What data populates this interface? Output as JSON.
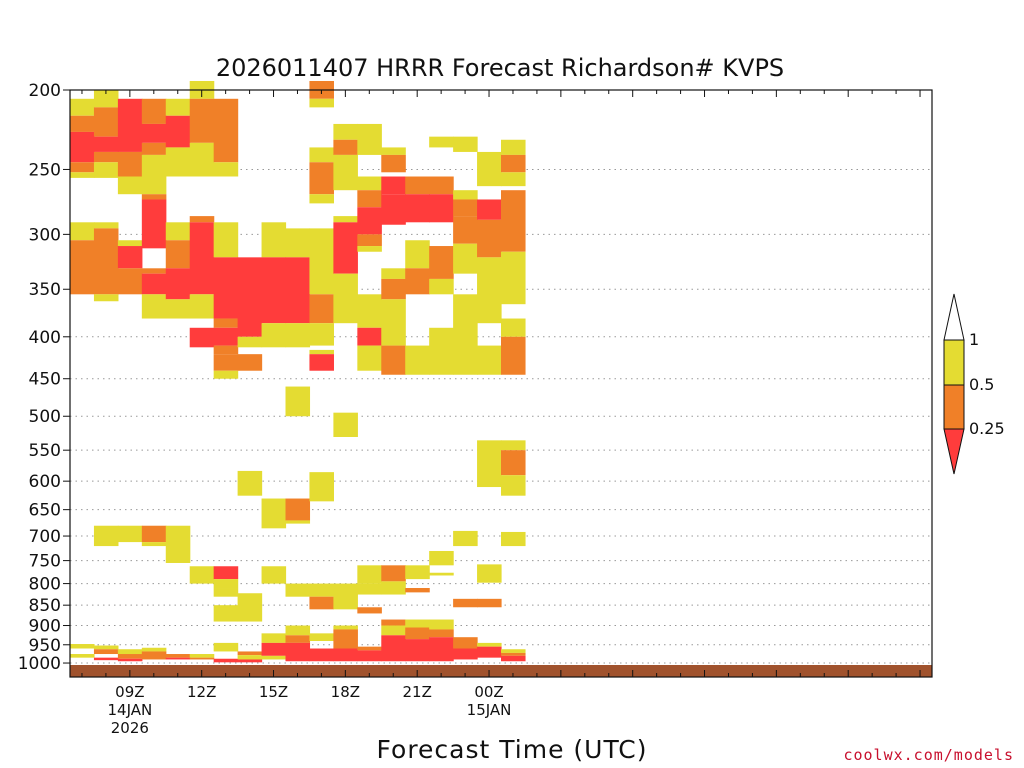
{
  "chart_data": {
    "type": "heatmap",
    "title": "2026011407 HRRR Forecast Richardson# KVPS",
    "xlabel": "Forecast Time (UTC)",
    "ylabel": "",
    "y_scale": "log",
    "y_range": [
      1040,
      200
    ],
    "y_ticks": [
      200,
      250,
      300,
      350,
      400,
      450,
      500,
      550,
      600,
      650,
      700,
      750,
      800,
      850,
      900,
      950,
      1000
    ],
    "x_range_hours": [
      6.5,
      42.5
    ],
    "x_ticks": [
      {
        "hour": 9,
        "lines": [
          "09Z",
          "14JAN",
          "2026"
        ]
      },
      {
        "hour": 12,
        "lines": [
          "12Z"
        ]
      },
      {
        "hour": 15,
        "lines": [
          "15Z"
        ]
      },
      {
        "hour": 18,
        "lines": [
          "18Z"
        ]
      },
      {
        "hour": 21,
        "lines": [
          "21Z"
        ]
      },
      {
        "hour": 24,
        "lines": [
          "00Z",
          "15JAN"
        ]
      }
    ],
    "grid": "dotted-horizontal",
    "categories": [
      {
        "label": "< 0.25",
        "color": "#ff3c3c"
      },
      {
        "label": "0.25-0.5",
        "color": "#f08028"
      },
      {
        "label": "0.5-1",
        "color": "#e4dc32"
      }
    ],
    "legend": {
      "placement": "right",
      "labels": [
        "1",
        "0.5",
        "0.25"
      ],
      "colors": {
        "red": "#ff3c3c",
        "orange": "#f08028",
        "yellow": "#e4dc32"
      }
    },
    "ground": {
      "color": "#a0522d",
      "top_hpa": 1004
    },
    "cells": [
      [
        "h",
        7,
        205,
        215,
        "y"
      ],
      [
        "h",
        7,
        215,
        225,
        "o"
      ],
      [
        "h",
        7,
        225,
        245,
        "r"
      ],
      [
        "h",
        7,
        245,
        252,
        "o"
      ],
      [
        "h",
        7,
        252,
        256,
        "y"
      ],
      [
        "h",
        7,
        290,
        305,
        "y"
      ],
      [
        "h",
        7,
        305,
        355,
        "o"
      ],
      [
        "h",
        7,
        948,
        960,
        "y"
      ],
      [
        "h",
        7,
        975,
        985,
        "y"
      ],
      [
        "h",
        8,
        200,
        210,
        "y"
      ],
      [
        "h",
        8,
        210,
        228,
        "o"
      ],
      [
        "h",
        8,
        228,
        238,
        "r"
      ],
      [
        "h",
        8,
        238,
        245,
        "o"
      ],
      [
        "h",
        8,
        245,
        256,
        "y"
      ],
      [
        "h",
        8,
        290,
        295,
        "y"
      ],
      [
        "h",
        8,
        295,
        355,
        "o"
      ],
      [
        "h",
        8,
        355,
        362,
        "y"
      ],
      [
        "h",
        8,
        680,
        720,
        "y"
      ],
      [
        "h",
        8,
        952,
        962,
        "y"
      ],
      [
        "h",
        8,
        962,
        975,
        "o"
      ],
      [
        "h",
        8,
        985,
        992,
        "r"
      ],
      [
        "h",
        9,
        205,
        238,
        "r"
      ],
      [
        "h",
        9,
        238,
        255,
        "o"
      ],
      [
        "h",
        9,
        255,
        268,
        "y"
      ],
      [
        "h",
        9,
        305,
        310,
        "y"
      ],
      [
        "h",
        9,
        310,
        330,
        "r"
      ],
      [
        "h",
        9,
        330,
        355,
        "o"
      ],
      [
        "h",
        9,
        680,
        712,
        "y"
      ],
      [
        "h",
        9,
        962,
        975,
        "y"
      ],
      [
        "h",
        9,
        975,
        988,
        "o"
      ],
      [
        "h",
        9,
        988,
        995,
        "r"
      ],
      [
        "h",
        10,
        205,
        220,
        "o"
      ],
      [
        "h",
        10,
        220,
        232,
        "r"
      ],
      [
        "h",
        10,
        232,
        240,
        "o"
      ],
      [
        "h",
        10,
        240,
        268,
        "y"
      ],
      [
        "h",
        10,
        268,
        272,
        "o"
      ],
      [
        "h",
        10,
        272,
        312,
        "r"
      ],
      [
        "h",
        10,
        330,
        335,
        "o"
      ],
      [
        "h",
        10,
        335,
        355,
        "r"
      ],
      [
        "h",
        10,
        355,
        380,
        "y"
      ],
      [
        "h",
        10,
        680,
        712,
        "o"
      ],
      [
        "h",
        10,
        712,
        720,
        "y"
      ],
      [
        "h",
        10,
        958,
        968,
        "y"
      ],
      [
        "h",
        10,
        968,
        990,
        "o"
      ],
      [
        "h",
        11,
        205,
        215,
        "y"
      ],
      [
        "h",
        11,
        215,
        235,
        "r"
      ],
      [
        "h",
        11,
        235,
        255,
        "y"
      ],
      [
        "h",
        11,
        290,
        305,
        "y"
      ],
      [
        "h",
        11,
        305,
        330,
        "o"
      ],
      [
        "h",
        11,
        330,
        360,
        "r"
      ],
      [
        "h",
        11,
        360,
        380,
        "y"
      ],
      [
        "h",
        11,
        680,
        755,
        "y"
      ],
      [
        "h",
        11,
        975,
        985,
        "o"
      ],
      [
        "h",
        11,
        985,
        990,
        "r"
      ],
      [
        "h",
        12,
        195,
        205,
        "y"
      ],
      [
        "h",
        12,
        205,
        232,
        "o"
      ],
      [
        "h",
        12,
        232,
        255,
        "y"
      ],
      [
        "h",
        12,
        285,
        290,
        "o"
      ],
      [
        "h",
        12,
        290,
        355,
        "r"
      ],
      [
        "h",
        12,
        355,
        380,
        "y"
      ],
      [
        "h",
        12,
        390,
        412,
        "r"
      ],
      [
        "h",
        12,
        762,
        800,
        "y"
      ],
      [
        "h",
        12,
        975,
        985,
        "y"
      ],
      [
        "h",
        12,
        985,
        990,
        "o"
      ],
      [
        "h",
        13,
        205,
        245,
        "o"
      ],
      [
        "h",
        13,
        245,
        255,
        "y"
      ],
      [
        "h",
        13,
        290,
        320,
        "y"
      ],
      [
        "h",
        13,
        320,
        380,
        "r"
      ],
      [
        "h",
        13,
        380,
        390,
        "o"
      ],
      [
        "h",
        13,
        390,
        410,
        "r"
      ],
      [
        "h",
        13,
        410,
        420,
        "o"
      ],
      [
        "h",
        13,
        420,
        440,
        "o"
      ],
      [
        "h",
        13,
        440,
        450,
        "y"
      ],
      [
        "h",
        13,
        762,
        790,
        "r"
      ],
      [
        "h",
        13,
        790,
        810,
        "y"
      ],
      [
        "h",
        13,
        810,
        830,
        "y"
      ],
      [
        "h",
        13,
        850,
        890,
        "y"
      ],
      [
        "h",
        13,
        945,
        968,
        "y"
      ],
      [
        "h",
        13,
        988,
        998,
        "r"
      ],
      [
        "h",
        14,
        320,
        400,
        "r"
      ],
      [
        "h",
        14,
        400,
        412,
        "y"
      ],
      [
        "h",
        14,
        420,
        440,
        "o"
      ],
      [
        "h",
        14,
        583,
        625,
        "y"
      ],
      [
        "h",
        14,
        822,
        890,
        "y"
      ],
      [
        "h",
        14,
        968,
        978,
        "o"
      ],
      [
        "h",
        14,
        978,
        990,
        "y"
      ],
      [
        "h",
        14,
        990,
        998,
        "r"
      ],
      [
        "h",
        15,
        290,
        320,
        "y"
      ],
      [
        "h",
        15,
        320,
        385,
        "r"
      ],
      [
        "h",
        15,
        385,
        412,
        "y"
      ],
      [
        "h",
        15,
        630,
        685,
        "y"
      ],
      [
        "h",
        15,
        762,
        800,
        "y"
      ],
      [
        "h",
        15,
        920,
        945,
        "y"
      ],
      [
        "h",
        15,
        945,
        980,
        "r"
      ],
      [
        "h",
        15,
        980,
        990,
        "y"
      ],
      [
        "h",
        16,
        295,
        320,
        "y"
      ],
      [
        "h",
        16,
        320,
        385,
        "r"
      ],
      [
        "h",
        16,
        385,
        412,
        "y"
      ],
      [
        "h",
        16,
        460,
        500,
        "y"
      ],
      [
        "h",
        16,
        630,
        670,
        "o"
      ],
      [
        "h",
        16,
        670,
        676,
        "y"
      ],
      [
        "h",
        16,
        800,
        830,
        "y"
      ],
      [
        "h",
        16,
        900,
        925,
        "y"
      ],
      [
        "h",
        16,
        925,
        945,
        "o"
      ],
      [
        "h",
        16,
        945,
        995,
        "r"
      ],
      [
        "h",
        17,
        195,
        205,
        "o"
      ],
      [
        "h",
        17,
        205,
        210,
        "y"
      ],
      [
        "h",
        17,
        235,
        245,
        "y"
      ],
      [
        "h",
        17,
        245,
        268,
        "o"
      ],
      [
        "h",
        17,
        268,
        275,
        "y"
      ],
      [
        "h",
        17,
        295,
        355,
        "y"
      ],
      [
        "h",
        17,
        355,
        385,
        "o"
      ],
      [
        "h",
        17,
        385,
        410,
        "y"
      ],
      [
        "h",
        17,
        415,
        420,
        "y"
      ],
      [
        "h",
        17,
        420,
        440,
        "r"
      ],
      [
        "h",
        17,
        585,
        635,
        "y"
      ],
      [
        "h",
        17,
        800,
        830,
        "y"
      ],
      [
        "h",
        17,
        830,
        860,
        "o"
      ],
      [
        "h",
        17,
        920,
        940,
        "y"
      ],
      [
        "h",
        17,
        960,
        995,
        "r"
      ],
      [
        "h",
        18,
        220,
        230,
        "y"
      ],
      [
        "h",
        18,
        230,
        240,
        "o"
      ],
      [
        "h",
        18,
        240,
        265,
        "y"
      ],
      [
        "h",
        18,
        285,
        290,
        "y"
      ],
      [
        "h",
        18,
        290,
        335,
        "r"
      ],
      [
        "h",
        18,
        335,
        385,
        "y"
      ],
      [
        "h",
        18,
        495,
        530,
        "y"
      ],
      [
        "h",
        18,
        800,
        860,
        "y"
      ],
      [
        "h",
        18,
        900,
        910,
        "y"
      ],
      [
        "h",
        18,
        910,
        940,
        "o"
      ],
      [
        "h",
        18,
        940,
        960,
        "o"
      ],
      [
        "h",
        18,
        960,
        995,
        "r"
      ],
      [
        "h",
        19,
        220,
        240,
        "y"
      ],
      [
        "h",
        19,
        255,
        265,
        "y"
      ],
      [
        "h",
        19,
        265,
        278,
        "o"
      ],
      [
        "h",
        19,
        278,
        300,
        "r"
      ],
      [
        "h",
        19,
        300,
        310,
        "o"
      ],
      [
        "h",
        19,
        310,
        315,
        "y"
      ],
      [
        "h",
        19,
        355,
        390,
        "y"
      ],
      [
        "h",
        19,
        390,
        410,
        "r"
      ],
      [
        "h",
        19,
        410,
        440,
        "y"
      ],
      [
        "h",
        19,
        760,
        800,
        "y"
      ],
      [
        "h",
        19,
        800,
        825,
        "y"
      ],
      [
        "h",
        19,
        855,
        870,
        "o"
      ],
      [
        "h",
        19,
        955,
        965,
        "o"
      ],
      [
        "h",
        19,
        965,
        995,
        "r"
      ],
      [
        "h",
        20,
        235,
        240,
        "y"
      ],
      [
        "h",
        20,
        240,
        252,
        "o"
      ],
      [
        "h",
        20,
        255,
        268,
        "r"
      ],
      [
        "h",
        20,
        268,
        292,
        "r"
      ],
      [
        "h",
        20,
        330,
        340,
        "y"
      ],
      [
        "h",
        20,
        340,
        360,
        "o"
      ],
      [
        "h",
        20,
        360,
        410,
        "y"
      ],
      [
        "h",
        20,
        410,
        445,
        "o"
      ],
      [
        "h",
        20,
        760,
        795,
        "o"
      ],
      [
        "h",
        20,
        795,
        825,
        "y"
      ],
      [
        "h",
        20,
        885,
        900,
        "o"
      ],
      [
        "h",
        20,
        900,
        925,
        "y"
      ],
      [
        "h",
        20,
        925,
        960,
        "r"
      ],
      [
        "h",
        20,
        960,
        995,
        "r"
      ],
      [
        "h",
        21,
        255,
        268,
        "o"
      ],
      [
        "h",
        21,
        268,
        290,
        "r"
      ],
      [
        "h",
        21,
        305,
        330,
        "y"
      ],
      [
        "h",
        21,
        330,
        355,
        "o"
      ],
      [
        "h",
        21,
        410,
        445,
        "y"
      ],
      [
        "h",
        21,
        760,
        790,
        "y"
      ],
      [
        "h",
        21,
        810,
        820,
        "o"
      ],
      [
        "h",
        21,
        885,
        905,
        "y"
      ],
      [
        "h",
        21,
        905,
        935,
        "o"
      ],
      [
        "h",
        21,
        935,
        995,
        "r"
      ],
      [
        "h",
        22,
        228,
        235,
        "y"
      ],
      [
        "h",
        22,
        255,
        268,
        "o"
      ],
      [
        "h",
        22,
        268,
        290,
        "r"
      ],
      [
        "h",
        22,
        310,
        340,
        "o"
      ],
      [
        "h",
        22,
        340,
        355,
        "y"
      ],
      [
        "h",
        22,
        390,
        445,
        "y"
      ],
      [
        "h",
        22,
        730,
        760,
        "y"
      ],
      [
        "h",
        22,
        776,
        782,
        "y"
      ],
      [
        "h",
        22,
        885,
        910,
        "y"
      ],
      [
        "h",
        22,
        910,
        930,
        "o"
      ],
      [
        "h",
        22,
        930,
        995,
        "r"
      ],
      [
        "h",
        23,
        228,
        238,
        "y"
      ],
      [
        "h",
        23,
        265,
        272,
        "y"
      ],
      [
        "h",
        23,
        272,
        285,
        "o"
      ],
      [
        "h",
        23,
        285,
        308,
        "o"
      ],
      [
        "h",
        23,
        308,
        335,
        "y"
      ],
      [
        "h",
        23,
        355,
        445,
        "y"
      ],
      [
        "h",
        23,
        690,
        720,
        "y"
      ],
      [
        "h",
        23,
        835,
        855,
        "o"
      ],
      [
        "h",
        23,
        930,
        960,
        "o"
      ],
      [
        "h",
        23,
        960,
        990,
        "r"
      ],
      [
        "h",
        24,
        238,
        262,
        "y"
      ],
      [
        "h",
        24,
        272,
        288,
        "r"
      ],
      [
        "h",
        24,
        288,
        320,
        "o"
      ],
      [
        "h",
        24,
        320,
        385,
        "y"
      ],
      [
        "h",
        24,
        410,
        445,
        "y"
      ],
      [
        "h",
        24,
        535,
        610,
        "y"
      ],
      [
        "h",
        24,
        758,
        798,
        "y"
      ],
      [
        "h",
        24,
        835,
        855,
        "o"
      ],
      [
        "h",
        24,
        945,
        955,
        "y"
      ],
      [
        "h",
        24,
        955,
        985,
        "r"
      ],
      [
        "h",
        25,
        230,
        240,
        "y"
      ],
      [
        "h",
        25,
        240,
        252,
        "o"
      ],
      [
        "h",
        25,
        252,
        262,
        "y"
      ],
      [
        "h",
        25,
        265,
        315,
        "o"
      ],
      [
        "h",
        25,
        315,
        365,
        "y"
      ],
      [
        "h",
        25,
        380,
        400,
        "y"
      ],
      [
        "h",
        25,
        400,
        445,
        "o"
      ],
      [
        "h",
        25,
        535,
        550,
        "y"
      ],
      [
        "h",
        25,
        550,
        590,
        "o"
      ],
      [
        "h",
        25,
        590,
        625,
        "y"
      ],
      [
        "h",
        25,
        692,
        720,
        "y"
      ],
      [
        "h",
        25,
        962,
        972,
        "y"
      ],
      [
        "h",
        25,
        972,
        980,
        "o"
      ],
      [
        "h",
        25,
        980,
        995,
        "r"
      ]
    ]
  }
}
